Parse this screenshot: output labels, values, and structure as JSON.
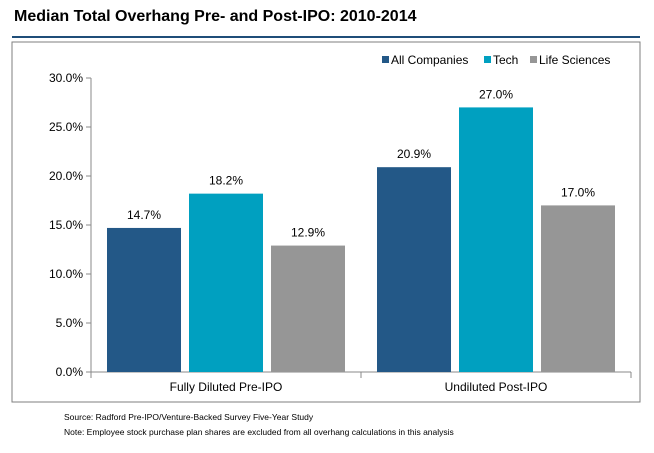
{
  "header": {
    "title": "Median Total Overhang Pre- and Post-IPO: 2010-2014"
  },
  "footer": {
    "source": "Source: Radford Pre-IPO/Venture-Backed Survey Five-Year Study",
    "note": "Note: Employee stock purchase plan shares are excluded from all overhang calculations in this analysis"
  },
  "colors": {
    "All Companies": "#235887",
    "Tech": "#00a0c0",
    "Life Sciences": "#969696",
    "rule": "#1f4e79"
  },
  "chart_data": {
    "type": "bar",
    "title": "Median Total Overhang Pre- and Post-IPO: 2010-2014",
    "xlabel": "",
    "ylabel": "",
    "categories": [
      "Fully Diluted Pre-IPO",
      "Undiluted Post-IPO"
    ],
    "series": [
      {
        "name": "All Companies",
        "values": [
          14.7,
          20.9
        ],
        "labels": [
          "14.7%",
          "20.9%"
        ]
      },
      {
        "name": "Tech",
        "values": [
          18.2,
          27.0
        ],
        "labels": [
          "18.2%",
          "27.0%"
        ]
      },
      {
        "name": "Life Sciences",
        "values": [
          12.9,
          17.0
        ],
        "labels": [
          "12.9%",
          "17.0%"
        ]
      }
    ],
    "ylim": [
      0,
      30
    ],
    "yticks": [
      0,
      5,
      10,
      15,
      20,
      25,
      30
    ],
    "ytick_labels": [
      "0.0%",
      "5.0%",
      "10.0%",
      "15.0%",
      "20.0%",
      "25.0%",
      "30.0%"
    ],
    "legend": "top-right",
    "grid": false
  }
}
